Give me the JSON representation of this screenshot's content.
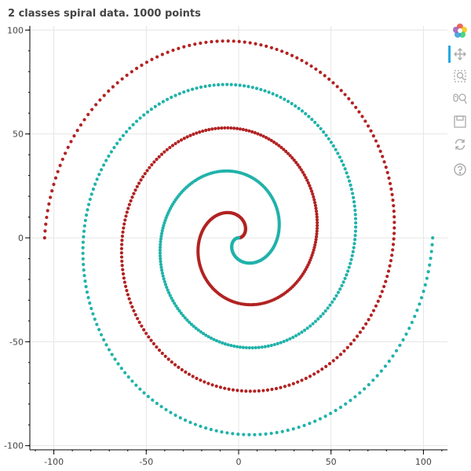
{
  "chart_data": {
    "type": "scatter",
    "title": "2 classes spiral data. 1000 points",
    "xlabel": "",
    "ylabel": "",
    "xlim": [
      -113,
      113
    ],
    "ylim": [
      -102,
      102
    ],
    "x_ticks": [
      -100,
      -50,
      0,
      50,
      100
    ],
    "y_ticks": [
      -100,
      -50,
      0,
      50,
      100
    ],
    "x_tick_labels": [
      "-100",
      "-50",
      "0",
      "50",
      "100"
    ],
    "y_tick_labels": [
      "-100",
      "-50",
      "0",
      "50",
      "100"
    ],
    "grid": true,
    "legend": "none",
    "points_per_class": 500,
    "series": [
      {
        "color": "#b22222",
        "spiral": {
          "center": [
            0,
            0
          ],
          "radius_start": 0,
          "radius_end": 105,
          "angle_start_deg": 0,
          "angle_end_deg": 900
        }
      },
      {
        "color": "#20b2aa",
        "spiral": {
          "center": [
            0,
            0
          ],
          "radius_start": 0,
          "radius_end": 105,
          "angle_start_deg": 180,
          "angle_end_deg": 1080
        }
      }
    ]
  },
  "toolbar": {
    "tools": [
      {
        "name": "bokeh-logo-icon",
        "interactable": false,
        "active": false
      },
      {
        "name": "pan-tool-icon",
        "interactable": true,
        "active": true
      },
      {
        "name": "box-zoom-tool-icon",
        "interactable": true,
        "active": false
      },
      {
        "name": "wheel-zoom-tool-icon",
        "interactable": true,
        "active": false
      },
      {
        "name": "save-tool-icon",
        "interactable": true,
        "active": false
      },
      {
        "name": "reset-tool-icon",
        "interactable": true,
        "active": false
      },
      {
        "name": "help-tool-icon",
        "interactable": true,
        "active": false
      }
    ],
    "active_color": "#26aae1",
    "icon_color": "#aaaaaa"
  }
}
